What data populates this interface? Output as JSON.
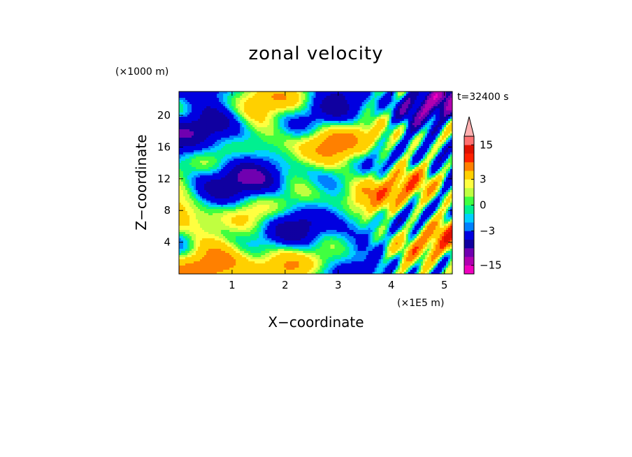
{
  "chart_data": {
    "type": "heatmap",
    "title": "zonal velocity",
    "xlabel": "X−coordinate",
    "ylabel": "Z−coordinate",
    "x_unit": "(×1E5 m)",
    "y_unit": "(×1000 m)",
    "time_label": "t=32400 s",
    "x_ticks": [
      "1",
      "2",
      "3",
      "4",
      "5"
    ],
    "y_ticks": [
      "4",
      "8",
      "12",
      "16",
      "20"
    ],
    "x_range": [
      0,
      5.15
    ],
    "y_range": [
      0,
      23
    ],
    "colorbar": {
      "levels": [
        -18,
        -15,
        -12,
        -9,
        -6,
        -3,
        -2,
        -1,
        0,
        1,
        2,
        3,
        6,
        9,
        12,
        15,
        18
      ],
      "colors": [
        "#f000c0",
        "#b000b0",
        "#7000b0",
        "#1000a0",
        "#0000e0",
        "#0080ff",
        "#00d0ff",
        "#00f090",
        "#40ff40",
        "#c0ff40",
        "#ffff40",
        "#ffd000",
        "#ff8000",
        "#ff2000",
        "#e01000",
        "#ff7070",
        "#ffb0b0"
      ],
      "extend_top": true,
      "tick_labels": [
        "−15",
        "−3",
        "0",
        "3",
        "15"
      ]
    },
    "field_description": "Filled contour of zonal velocity over X–Z plane"
  }
}
